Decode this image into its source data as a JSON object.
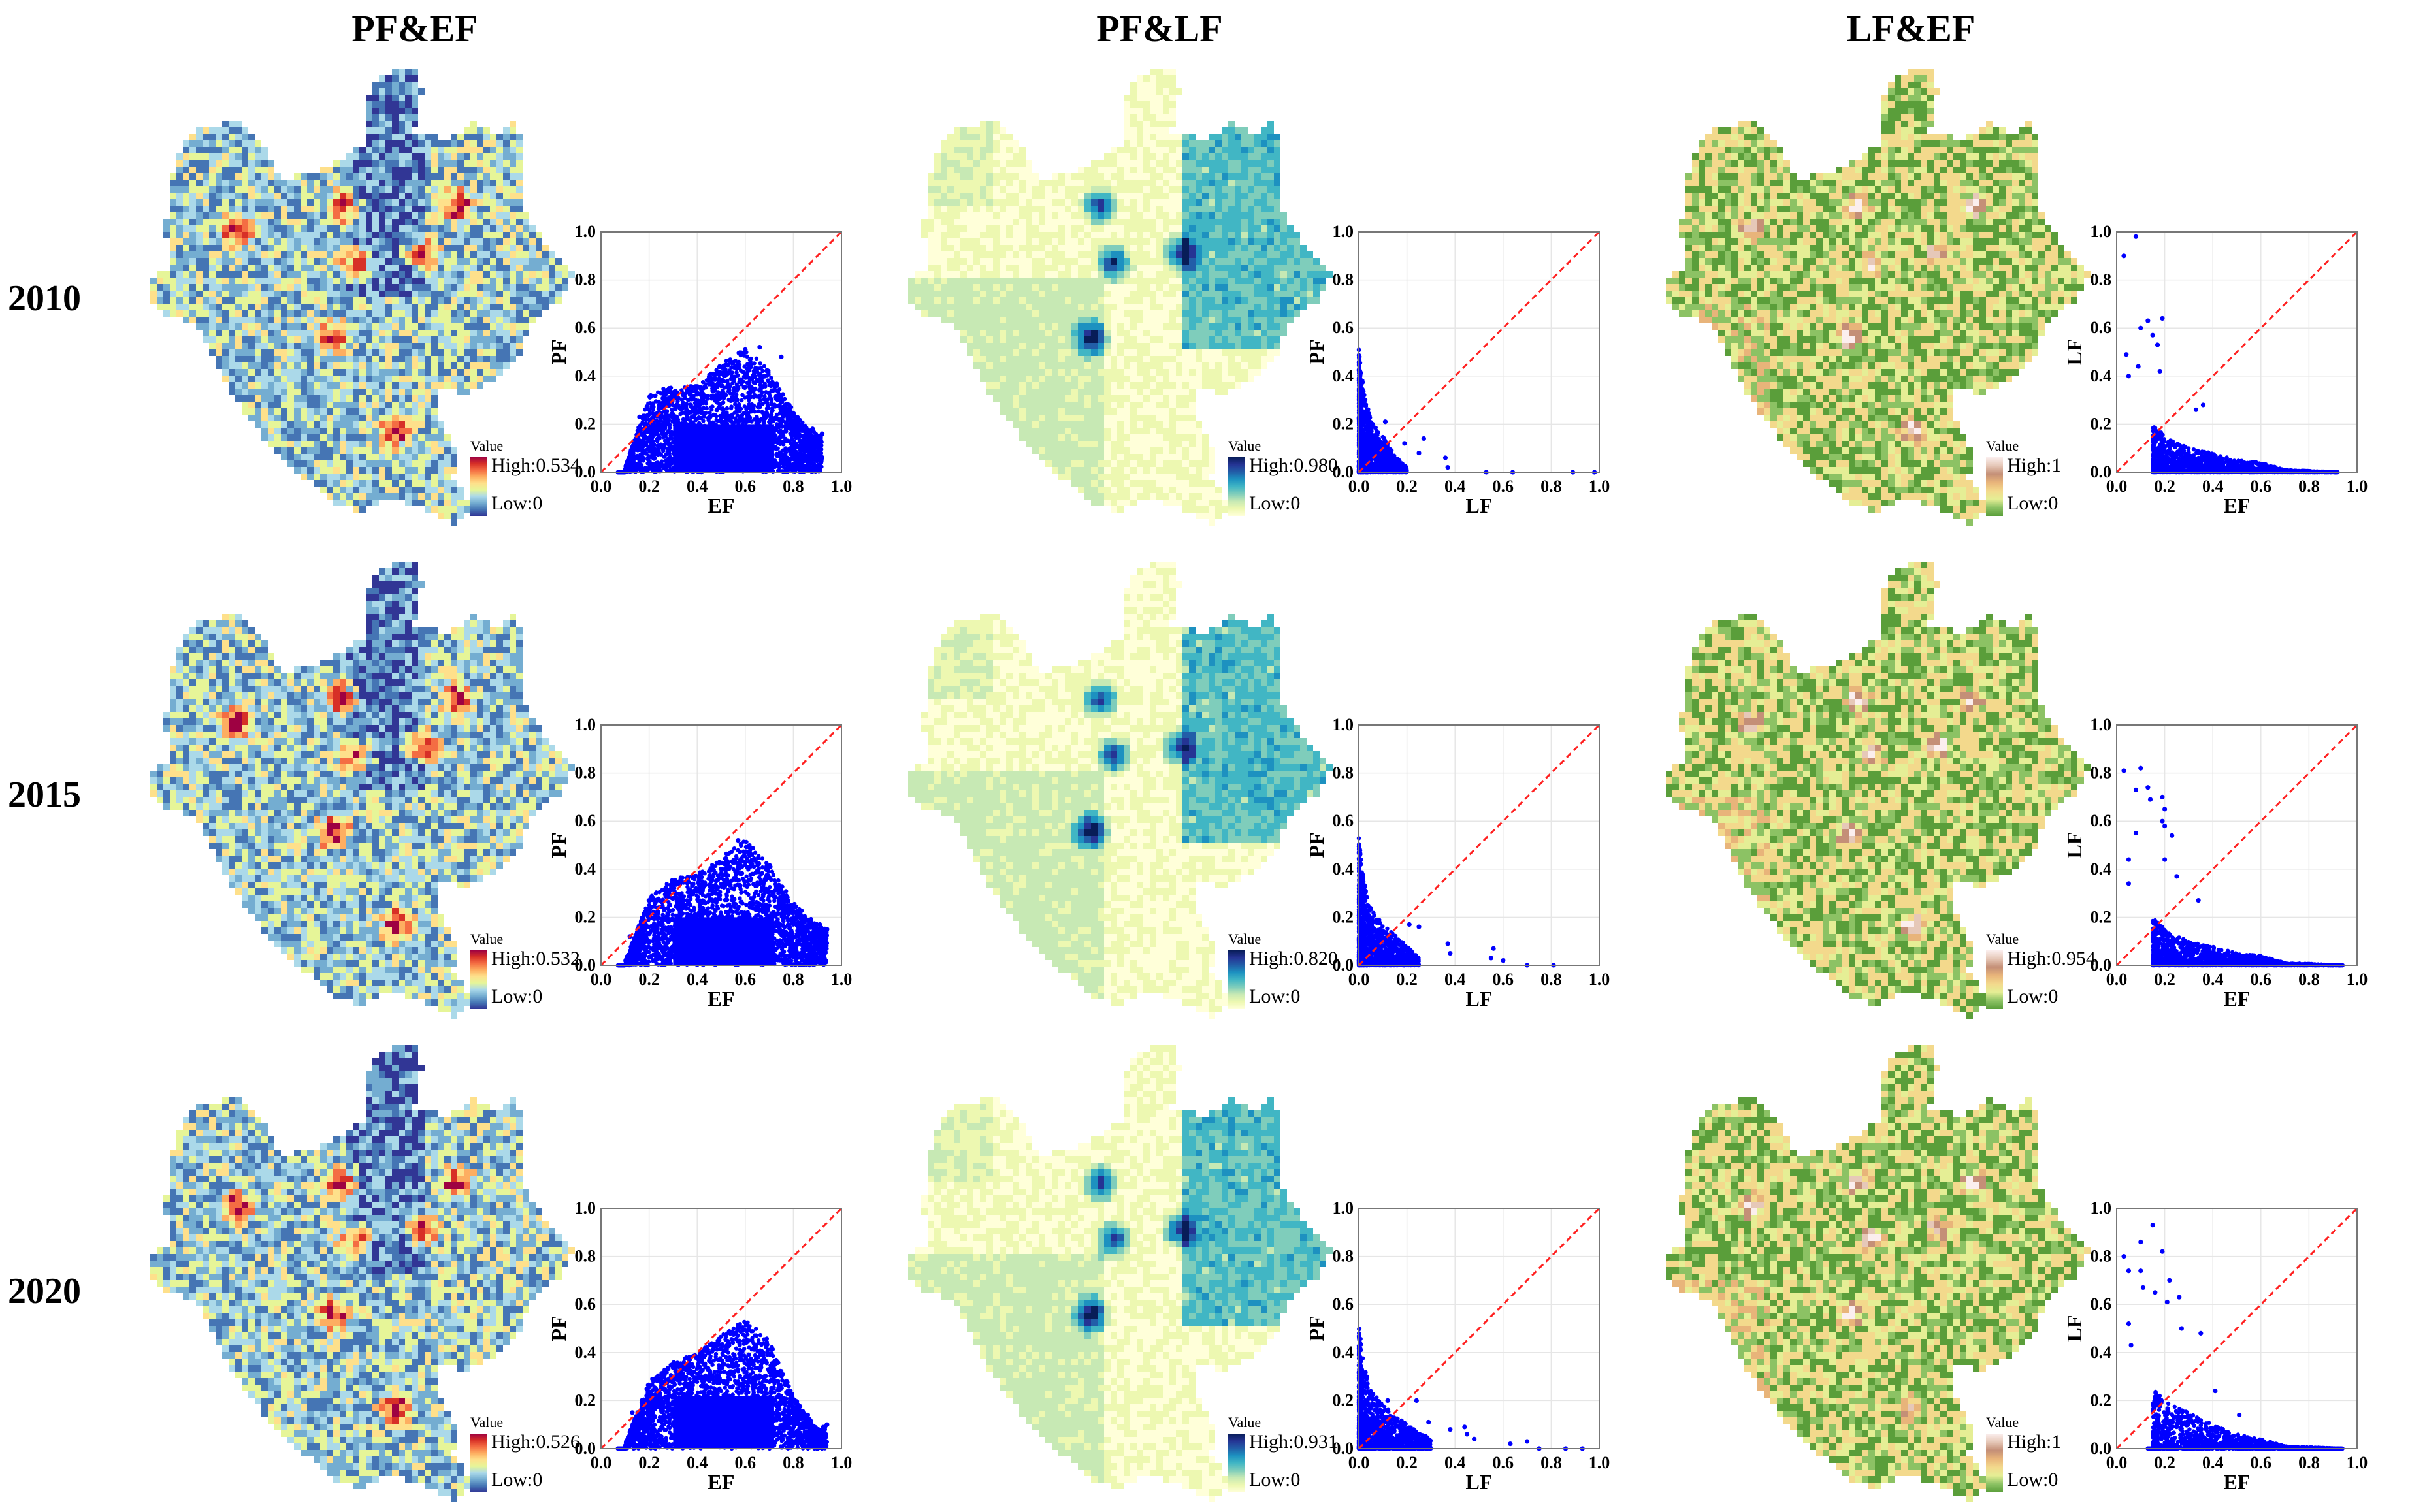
{
  "columns": [
    {
      "title": "PF&EF"
    },
    {
      "title": "PF&LF"
    },
    {
      "title": "LF&EF"
    }
  ],
  "rows": [
    {
      "year": "2010"
    },
    {
      "year": "2015"
    },
    {
      "year": "2020"
    }
  ],
  "legend_title": "Value",
  "palettes": {
    "spectral": [
      "#313695",
      "#4575b4",
      "#74add1",
      "#abd9e9",
      "#e6f598",
      "#fee08b",
      "#fdae61",
      "#f46d43",
      "#d73027",
      "#9e0142"
    ],
    "ylgnbu": [
      "#ffffd9",
      "#edf8b1",
      "#c7e9b4",
      "#7fcdbb",
      "#41b6c4",
      "#1d91c0",
      "#225ea8",
      "#253494",
      "#081d58"
    ],
    "terrain": [
      "#5a9e3a",
      "#8cc264",
      "#e5ee95",
      "#f3d98c",
      "#e8b47a",
      "#c48f77",
      "#e6c8b8",
      "#fbeeee"
    ]
  },
  "maps": [
    [
      {
        "palette": "spectral",
        "high": "High:0.534",
        "low": "Low:0"
      },
      {
        "palette": "ylgnbu",
        "high": "High:0.980",
        "low": "Low:0"
      },
      {
        "palette": "terrain",
        "high": "High:1",
        "low": "Low:0"
      }
    ],
    [
      {
        "palette": "spectral",
        "high": "High:0.532",
        "low": "Low:0"
      },
      {
        "palette": "ylgnbu",
        "high": "High:0.820",
        "low": "Low:0"
      },
      {
        "palette": "terrain",
        "high": "High:0.954",
        "low": "Low:0"
      }
    ],
    [
      {
        "palette": "spectral",
        "high": "High:0.526",
        "low": "Low:0"
      },
      {
        "palette": "ylgnbu",
        "high": "High:0.931",
        "low": "Low:0"
      },
      {
        "palette": "terrain",
        "high": "High:1",
        "low": "Low:0"
      }
    ]
  ],
  "chart_data": [
    {
      "type": "scatter",
      "panel": "PF&EF 2010",
      "xlabel": "EF",
      "ylabel": "PF",
      "xlim": [
        0,
        1
      ],
      "ylim": [
        0,
        1
      ],
      "ticks": [
        "0.0",
        "0.2",
        "0.4",
        "0.6",
        "0.8",
        "1.0"
      ],
      "grid": true,
      "reference_line": "y=x (red dashed)",
      "point_color": "#0000ff",
      "cloud": {
        "x_range": [
          0.07,
          0.92
        ],
        "y_max_at_x": [
          [
            0.1,
            0.02
          ],
          [
            0.2,
            0.32
          ],
          [
            0.26,
            0.35
          ],
          [
            0.4,
            0.36
          ],
          [
            0.5,
            0.45
          ],
          [
            0.6,
            0.52
          ],
          [
            0.7,
            0.42
          ],
          [
            0.8,
            0.26
          ],
          [
            0.86,
            0.18
          ],
          [
            0.92,
            0.16
          ]
        ],
        "dense_y_max": 0.2
      },
      "outliers": [
        [
          0.92,
          0.16
        ],
        [
          0.88,
          0.18
        ],
        [
          0.16,
          0.23
        ],
        [
          0.66,
          0.52
        ],
        [
          0.6,
          0.51
        ],
        [
          0.75,
          0.48
        ]
      ]
    },
    {
      "type": "scatter",
      "panel": "PF&LF 2010",
      "xlabel": "LF",
      "ylabel": "PF",
      "xlim": [
        0,
        1
      ],
      "ylim": [
        0,
        1
      ],
      "ticks": [
        "0.0",
        "0.2",
        "0.4",
        "0.6",
        "0.8",
        "1.0"
      ],
      "grid": true,
      "reference_line": "y=x (red dashed)",
      "point_color": "#0000ff",
      "cloud": {
        "x_range": [
          0.0,
          0.2
        ],
        "y_max_at_x": [
          [
            0.0,
            0.52
          ],
          [
            0.01,
            0.41
          ],
          [
            0.03,
            0.3
          ],
          [
            0.05,
            0.22
          ],
          [
            0.1,
            0.15
          ],
          [
            0.15,
            0.07
          ],
          [
            0.2,
            0.02
          ]
        ]
      },
      "outliers": [
        [
          0.11,
          0.21
        ],
        [
          0.27,
          0.14
        ],
        [
          0.19,
          0.12
        ],
        [
          0.25,
          0.08
        ],
        [
          0.36,
          0.06
        ],
        [
          0.37,
          0.02
        ],
        [
          0.53,
          0.0
        ],
        [
          0.64,
          0.0
        ],
        [
          0.89,
          0.0
        ],
        [
          0.98,
          0.0
        ]
      ]
    },
    {
      "type": "scatter",
      "panel": "LF&EF 2010",
      "xlabel": "EF",
      "ylabel": "LF",
      "xlim": [
        0,
        1
      ],
      "ylim": [
        0,
        1
      ],
      "ticks": [
        "0.0",
        "0.2",
        "0.4",
        "0.6",
        "0.8",
        "1.0"
      ],
      "grid": true,
      "reference_line": "y=x (red dashed)",
      "point_color": "#0000ff",
      "cloud": {
        "x_range": [
          0.15,
          0.92
        ],
        "y_max_at_x": [
          [
            0.15,
            0.2
          ],
          [
            0.2,
            0.15
          ],
          [
            0.3,
            0.1
          ],
          [
            0.4,
            0.08
          ],
          [
            0.5,
            0.05
          ],
          [
            0.6,
            0.04
          ],
          [
            0.7,
            0.01
          ],
          [
            0.92,
            0.0
          ]
        ]
      },
      "outliers": [
        [
          0.08,
          0.98
        ],
        [
          0.03,
          0.9
        ],
        [
          0.19,
          0.64
        ],
        [
          0.13,
          0.63
        ],
        [
          0.1,
          0.6
        ],
        [
          0.15,
          0.57
        ],
        [
          0.17,
          0.53
        ],
        [
          0.04,
          0.49
        ],
        [
          0.09,
          0.44
        ],
        [
          0.18,
          0.42
        ],
        [
          0.05,
          0.4
        ],
        [
          0.36,
          0.28
        ],
        [
          0.33,
          0.26
        ]
      ]
    },
    {
      "type": "scatter",
      "panel": "PF&EF 2015",
      "xlabel": "EF",
      "ylabel": "PF",
      "xlim": [
        0,
        1
      ],
      "ylim": [
        0,
        1
      ],
      "ticks": [
        "0.0",
        "0.2",
        "0.4",
        "0.6",
        "0.8",
        "1.0"
      ],
      "grid": true,
      "reference_line": "y=x (red dashed)",
      "point_color": "#0000ff",
      "cloud": {
        "x_range": [
          0.07,
          0.94
        ],
        "y_max_at_x": [
          [
            0.1,
            0.02
          ],
          [
            0.2,
            0.28
          ],
          [
            0.3,
            0.36
          ],
          [
            0.4,
            0.38
          ],
          [
            0.5,
            0.45
          ],
          [
            0.6,
            0.52
          ],
          [
            0.7,
            0.42
          ],
          [
            0.8,
            0.26
          ],
          [
            0.9,
            0.17
          ],
          [
            0.94,
            0.15
          ]
        ],
        "dense_y_max": 0.2
      },
      "outliers": [
        [
          0.94,
          0.15
        ],
        [
          0.91,
          0.17
        ],
        [
          0.12,
          0.12
        ],
        [
          0.57,
          0.52
        ]
      ]
    },
    {
      "type": "scatter",
      "panel": "PF&LF 2015",
      "xlabel": "LF",
      "ylabel": "PF",
      "xlim": [
        0,
        1
      ],
      "ylim": [
        0,
        1
      ],
      "ticks": [
        "0.0",
        "0.2",
        "0.4",
        "0.6",
        "0.8",
        "1.0"
      ],
      "grid": true,
      "reference_line": "y=x (red dashed)",
      "point_color": "#0000ff",
      "cloud": {
        "x_range": [
          0.0,
          0.25
        ],
        "y_max_at_x": [
          [
            0.0,
            0.53
          ],
          [
            0.02,
            0.35
          ],
          [
            0.05,
            0.24
          ],
          [
            0.1,
            0.17
          ],
          [
            0.2,
            0.08
          ],
          [
            0.25,
            0.03
          ]
        ]
      },
      "outliers": [
        [
          0.21,
          0.17
        ],
        [
          0.25,
          0.16
        ],
        [
          0.37,
          0.09
        ],
        [
          0.38,
          0.05
        ],
        [
          0.56,
          0.07
        ],
        [
          0.55,
          0.03
        ],
        [
          0.6,
          0.02
        ],
        [
          0.7,
          0.0
        ],
        [
          0.81,
          0.0
        ]
      ]
    },
    {
      "type": "scatter",
      "panel": "LF&EF 2015",
      "xlabel": "EF",
      "ylabel": "LF",
      "xlim": [
        0,
        1
      ],
      "ylim": [
        0,
        1
      ],
      "ticks": [
        "0.0",
        "0.2",
        "0.4",
        "0.6",
        "0.8",
        "1.0"
      ],
      "grid": true,
      "reference_line": "y=x (red dashed)",
      "point_color": "#0000ff",
      "cloud": {
        "x_range": [
          0.15,
          0.94
        ],
        "y_max_at_x": [
          [
            0.15,
            0.2
          ],
          [
            0.2,
            0.15
          ],
          [
            0.3,
            0.1
          ],
          [
            0.4,
            0.08
          ],
          [
            0.5,
            0.05
          ],
          [
            0.6,
            0.04
          ],
          [
            0.7,
            0.01
          ],
          [
            0.94,
            0.0
          ]
        ]
      },
      "outliers": [
        [
          0.03,
          0.81
        ],
        [
          0.1,
          0.82
        ],
        [
          0.08,
          0.73
        ],
        [
          0.13,
          0.74
        ],
        [
          0.19,
          0.7
        ],
        [
          0.14,
          0.69
        ],
        [
          0.2,
          0.65
        ],
        [
          0.19,
          0.6
        ],
        [
          0.2,
          0.58
        ],
        [
          0.23,
          0.54
        ],
        [
          0.08,
          0.55
        ],
        [
          0.05,
          0.44
        ],
        [
          0.2,
          0.44
        ],
        [
          0.25,
          0.37
        ],
        [
          0.05,
          0.34
        ],
        [
          0.34,
          0.27
        ]
      ]
    },
    {
      "type": "scatter",
      "panel": "PF&EF 2020",
      "xlabel": "EF",
      "ylabel": "PF",
      "xlim": [
        0,
        1
      ],
      "ylim": [
        0,
        1
      ],
      "ticks": [
        "0.0",
        "0.2",
        "0.4",
        "0.6",
        "0.8",
        "1.0"
      ],
      "grid": true,
      "reference_line": "y=x (red dashed)",
      "point_color": "#0000ff",
      "cloud": {
        "x_range": [
          0.07,
          0.94
        ],
        "y_max_at_x": [
          [
            0.1,
            0.02
          ],
          [
            0.2,
            0.28
          ],
          [
            0.3,
            0.36
          ],
          [
            0.4,
            0.4
          ],
          [
            0.5,
            0.47
          ],
          [
            0.6,
            0.54
          ],
          [
            0.7,
            0.45
          ],
          [
            0.8,
            0.22
          ],
          [
            0.9,
            0.08
          ],
          [
            0.94,
            0.1
          ]
        ],
        "dense_y_max": 0.22
      },
      "outliers": [
        [
          0.94,
          0.1
        ],
        [
          0.9,
          0.06
        ],
        [
          0.13,
          0.15
        ],
        [
          0.86,
          0.14
        ]
      ]
    },
    {
      "type": "scatter",
      "panel": "PF&LF 2020",
      "xlabel": "LF",
      "ylabel": "PF",
      "xlim": [
        0,
        1
      ],
      "ylim": [
        0,
        1
      ],
      "ticks": [
        "0.0",
        "0.2",
        "0.4",
        "0.6",
        "0.8",
        "1.0"
      ],
      "grid": true,
      "reference_line": "y=x (red dashed)",
      "point_color": "#0000ff",
      "cloud": {
        "x_range": [
          0.0,
          0.3
        ],
        "y_max_at_x": [
          [
            0.0,
            0.52
          ],
          [
            0.02,
            0.35
          ],
          [
            0.05,
            0.25
          ],
          [
            0.1,
            0.18
          ],
          [
            0.2,
            0.1
          ],
          [
            0.3,
            0.04
          ]
        ]
      },
      "outliers": [
        [
          0.12,
          0.2
        ],
        [
          0.24,
          0.2
        ],
        [
          0.29,
          0.11
        ],
        [
          0.38,
          0.08
        ],
        [
          0.44,
          0.09
        ],
        [
          0.45,
          0.06
        ],
        [
          0.48,
          0.04
        ],
        [
          0.63,
          0.02
        ],
        [
          0.7,
          0.03
        ],
        [
          0.75,
          0.0
        ],
        [
          0.86,
          0.0
        ],
        [
          0.93,
          0.0
        ]
      ]
    },
    {
      "type": "scatter",
      "panel": "LF&EF 2020",
      "xlabel": "EF",
      "ylabel": "LF",
      "xlim": [
        0,
        1
      ],
      "ylim": [
        0,
        1
      ],
      "ticks": [
        "0.0",
        "0.2",
        "0.4",
        "0.6",
        "0.8",
        "1.0"
      ],
      "grid": true,
      "reference_line": "y=x (red dashed)",
      "point_color": "#0000ff",
      "cloud": {
        "x_range": [
          0.13,
          0.94
        ],
        "y_max_at_x": [
          [
            0.15,
            0.25
          ],
          [
            0.2,
            0.2
          ],
          [
            0.3,
            0.15
          ],
          [
            0.4,
            0.1
          ],
          [
            0.5,
            0.06
          ],
          [
            0.6,
            0.04
          ],
          [
            0.7,
            0.01
          ],
          [
            0.94,
            0.0
          ]
        ]
      },
      "outliers": [
        [
          0.15,
          0.93
        ],
        [
          0.1,
          0.86
        ],
        [
          0.19,
          0.82
        ],
        [
          0.03,
          0.8
        ],
        [
          0.05,
          0.74
        ],
        [
          0.1,
          0.74
        ],
        [
          0.22,
          0.7
        ],
        [
          0.11,
          0.67
        ],
        [
          0.16,
          0.65
        ],
        [
          0.26,
          0.63
        ],
        [
          0.21,
          0.61
        ],
        [
          0.05,
          0.52
        ],
        [
          0.27,
          0.5
        ],
        [
          0.35,
          0.48
        ],
        [
          0.06,
          0.43
        ],
        [
          0.41,
          0.24
        ],
        [
          0.51,
          0.14
        ]
      ]
    }
  ]
}
